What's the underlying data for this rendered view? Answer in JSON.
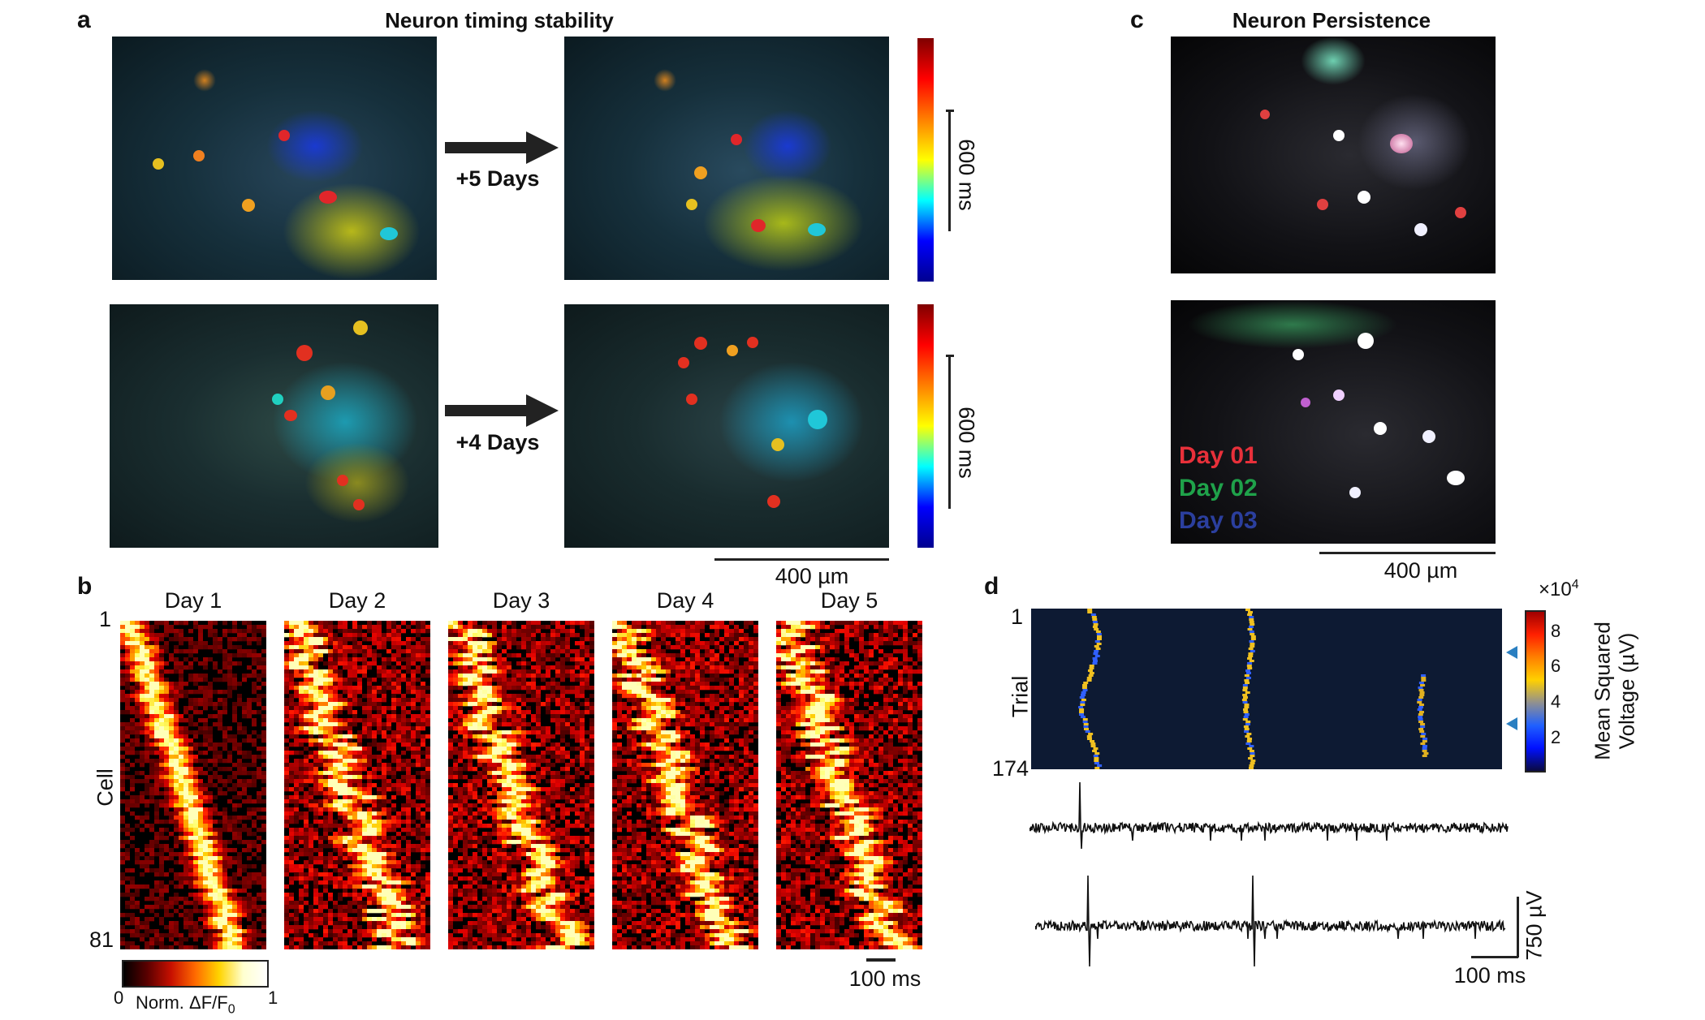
{
  "panel_a": {
    "label": "a",
    "title": "Neuron timing stability",
    "arrow_top": "+5 Days",
    "arrow_bottom": "+4 Days",
    "colorbar_scale": "600 ms",
    "scalebar": "400 µm"
  },
  "panel_c": {
    "label": "c",
    "title": "Neuron Persistence",
    "legend": [
      {
        "label": "Day 01",
        "color": "#e8303a"
      },
      {
        "label": "Day 02",
        "color": "#1fa24a"
      },
      {
        "label": "Day 03",
        "color": "#2b3f9e"
      }
    ],
    "scalebar": "400 µm"
  },
  "panel_b": {
    "label": "b",
    "days": [
      "Day 1",
      "Day 2",
      "Day 3",
      "Day 4",
      "Day 5"
    ],
    "y_label": "Cell",
    "y_top": "1",
    "y_bottom": "81",
    "colorbar_min": "0",
    "colorbar_max": "1",
    "colorbar_label": "Norm. ΔF/F",
    "colorbar_label_sub": "0",
    "scalebar": "100 ms"
  },
  "panel_d": {
    "label": "d",
    "y_label": "Trial",
    "y_top": "1",
    "y_bottom": "174",
    "colorbar_exponent_base": "×10",
    "colorbar_exponent": "4",
    "colorbar_ticks": [
      "8",
      "6",
      "4",
      "2"
    ],
    "colorbar_label_line1": "Mean Squared",
    "colorbar_label_line2": "Voltage (µV)",
    "scalebar_time": "100 ms",
    "scalebar_voltage": "750 µV",
    "marker_color": "#2a7fc1"
  }
}
